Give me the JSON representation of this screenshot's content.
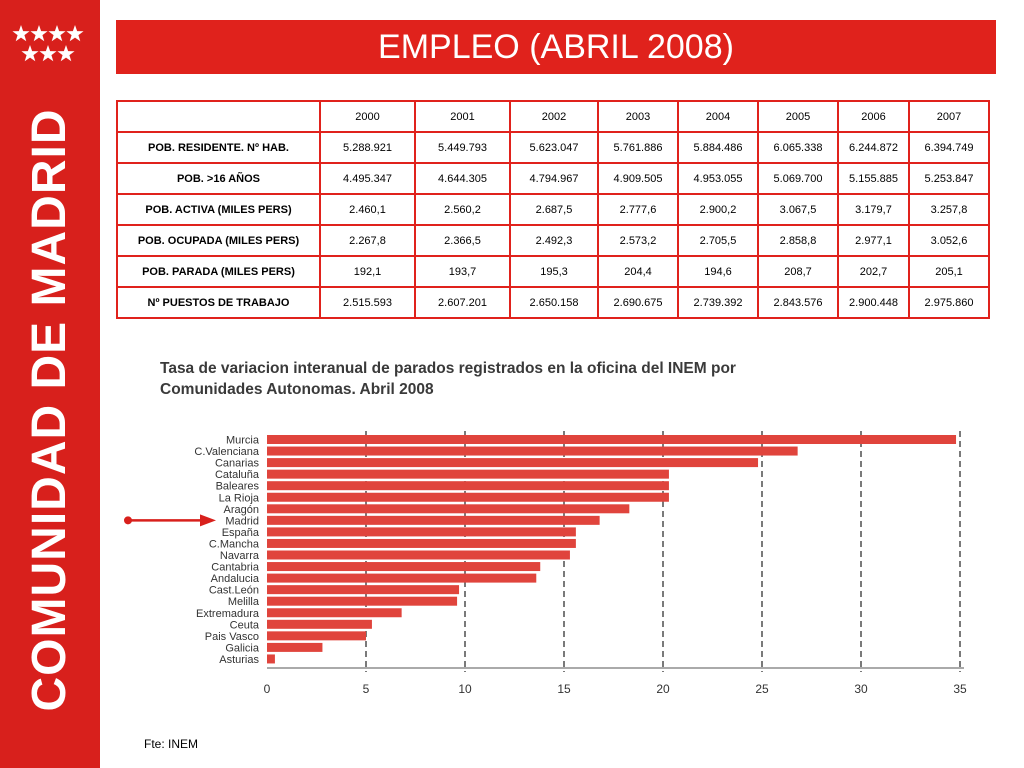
{
  "sidebar": {
    "title": "COMUNIDAD DE MADRID",
    "logo": "seven-white-stars"
  },
  "header": {
    "title": "EMPLEO (ABRIL 2008)"
  },
  "table": {
    "columns": [
      "2000",
      "2001",
      "2002",
      "2003",
      "2004",
      "2005",
      "2006",
      "2007"
    ],
    "rows": [
      {
        "label": "POB. RESIDENTE.  Nº HAB.",
        "values": [
          "5.288.921",
          "5.449.793",
          "5.623.047",
          "5.761.886",
          "5.884.486",
          "6.065.338",
          "6.244.872",
          "6.394.749"
        ]
      },
      {
        "label": "POB. >16 AÑOS",
        "values": [
          "4.495.347",
          "4.644.305",
          "4.794.967",
          "4.909.505",
          "4.953.055",
          "5.069.700",
          "5.155.885",
          "5.253.847"
        ]
      },
      {
        "label": "POB. ACTIVA (MILES PERS)",
        "values": [
          "2.460,1",
          "2.560,2",
          "2.687,5",
          "2.777,6",
          "2.900,2",
          "3.067,5",
          "3.179,7",
          "3.257,8"
        ]
      },
      {
        "label": "POB. OCUPADA  (MILES PERS)",
        "values": [
          "2.267,8",
          "2.366,5",
          "2.492,3",
          "2.573,2",
          "2.705,5",
          "2.858,8",
          "2.977,1",
          "3.052,6"
        ]
      },
      {
        "label": "POB. PARADA  (MILES PERS)",
        "values": [
          "192,1",
          "193,7",
          "195,3",
          "204,4",
          "194,6",
          "208,7",
          "202,7",
          "205,1"
        ]
      },
      {
        "label": "Nº PUESTOS DE TRABAJO",
        "values": [
          "2.515.593",
          "2.607.201",
          "2.650.158",
          "2.690.675",
          "2.739.392",
          "2.843.576",
          "2.900.448",
          "2.975.860"
        ]
      }
    ]
  },
  "chart_data": {
    "type": "bar",
    "orientation": "horizontal",
    "title_line1": "Tasa de variacion interanual de parados registrados en la oficina del INEM por",
    "title_line2": "Comunidades Autonomas. Abril 2008",
    "categories": [
      "Murcia",
      "C.Valenciana",
      "Canarias",
      "Cataluña",
      "Baleares",
      "La Rioja",
      "Aragón",
      "Madrid",
      "España",
      "C.Mancha",
      "Navarra",
      "Cantabria",
      "Andalucia",
      "Cast.León",
      "Melilla",
      "Extremadura",
      "Ceuta",
      "Pais Vasco",
      "Galicia",
      "Asturias"
    ],
    "values": [
      34.8,
      26.8,
      24.8,
      20.3,
      20.3,
      20.3,
      18.3,
      16.8,
      15.6,
      15.6,
      15.3,
      13.8,
      13.6,
      9.7,
      9.6,
      6.8,
      5.3,
      5.0,
      2.8,
      0.4
    ],
    "xlim": [
      0,
      35
    ],
    "xticks": [
      0,
      5,
      10,
      15,
      20,
      25,
      30,
      35
    ],
    "grid": "dashed-vertical",
    "bar_color": "#e0443c",
    "highlight": "Madrid",
    "source": "Fte: INEM"
  }
}
